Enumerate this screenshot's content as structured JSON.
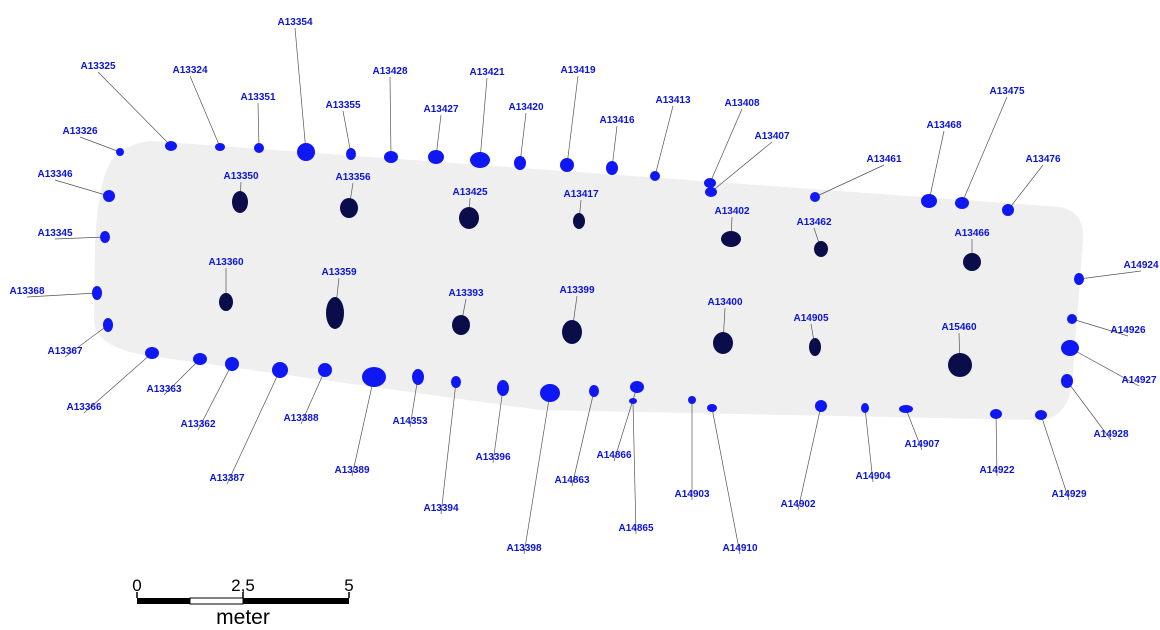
{
  "colors": {
    "outer_posthole": "#0f17f5",
    "inner_posthole": "#0a0d4a",
    "house_outline": "#efefef",
    "label": "#0a14d8"
  },
  "features": [
    {
      "id": "A13325",
      "kind": "outer"
    },
    {
      "id": "A13324",
      "kind": "outer"
    },
    {
      "id": "A13354",
      "kind": "outer"
    },
    {
      "id": "A13351",
      "kind": "outer"
    },
    {
      "id": "A13355",
      "kind": "outer"
    },
    {
      "id": "A13428",
      "kind": "outer"
    },
    {
      "id": "A13427",
      "kind": "outer"
    },
    {
      "id": "A13421",
      "kind": "outer"
    },
    {
      "id": "A13420",
      "kind": "outer"
    },
    {
      "id": "A13419",
      "kind": "outer"
    },
    {
      "id": "A13416",
      "kind": "outer"
    },
    {
      "id": "A13413",
      "kind": "outer"
    },
    {
      "id": "A13408",
      "kind": "outer"
    },
    {
      "id": "A13407",
      "kind": "outer"
    },
    {
      "id": "A13468",
      "kind": "outer"
    },
    {
      "id": "A13475",
      "kind": "outer"
    },
    {
      "id": "A13476",
      "kind": "outer"
    },
    {
      "id": "A13461",
      "kind": "outer"
    },
    {
      "id": "A13326",
      "kind": "outer"
    },
    {
      "id": "A13346",
      "kind": "outer"
    },
    {
      "id": "A13345",
      "kind": "outer"
    },
    {
      "id": "A13368",
      "kind": "outer"
    },
    {
      "id": "A13367",
      "kind": "outer"
    },
    {
      "id": "A13366",
      "kind": "outer"
    },
    {
      "id": "A13363",
      "kind": "outer"
    },
    {
      "id": "A13362",
      "kind": "outer"
    },
    {
      "id": "A13387",
      "kind": "outer"
    },
    {
      "id": "A13388",
      "kind": "outer"
    },
    {
      "id": "A13389",
      "kind": "outer"
    },
    {
      "id": "A14353",
      "kind": "outer"
    },
    {
      "id": "A13394",
      "kind": "outer"
    },
    {
      "id": "A13396",
      "kind": "outer"
    },
    {
      "id": "A13398",
      "kind": "outer"
    },
    {
      "id": "A14863",
      "kind": "outer"
    },
    {
      "id": "A14866",
      "kind": "outer"
    },
    {
      "id": "A14865",
      "kind": "outer"
    },
    {
      "id": "A14903",
      "kind": "outer"
    },
    {
      "id": "A14910",
      "kind": "outer"
    },
    {
      "id": "A14902",
      "kind": "outer"
    },
    {
      "id": "A14904",
      "kind": "outer"
    },
    {
      "id": "A14907",
      "kind": "outer"
    },
    {
      "id": "A14922",
      "kind": "outer"
    },
    {
      "id": "A14929",
      "kind": "outer"
    },
    {
      "id": "A14928",
      "kind": "outer"
    },
    {
      "id": "A14927",
      "kind": "outer"
    },
    {
      "id": "A14926",
      "kind": "outer"
    },
    {
      "id": "A14924",
      "kind": "outer"
    },
    {
      "id": "A13350",
      "kind": "inner"
    },
    {
      "id": "A13356",
      "kind": "inner"
    },
    {
      "id": "A13425",
      "kind": "inner"
    },
    {
      "id": "A13417",
      "kind": "inner"
    },
    {
      "id": "A13402",
      "kind": "inner"
    },
    {
      "id": "A13462",
      "kind": "inner"
    },
    {
      "id": "A13466",
      "kind": "inner"
    },
    {
      "id": "A13360",
      "kind": "inner"
    },
    {
      "id": "A13359",
      "kind": "inner"
    },
    {
      "id": "A13393",
      "kind": "inner"
    },
    {
      "id": "A13399",
      "kind": "inner"
    },
    {
      "id": "A13400",
      "kind": "inner"
    },
    {
      "id": "A14905",
      "kind": "inner"
    },
    {
      "id": "A15460",
      "kind": "inner"
    }
  ],
  "scale_bar": {
    "ticks": [
      "0",
      "2,5",
      "5"
    ],
    "unit": "meter"
  }
}
